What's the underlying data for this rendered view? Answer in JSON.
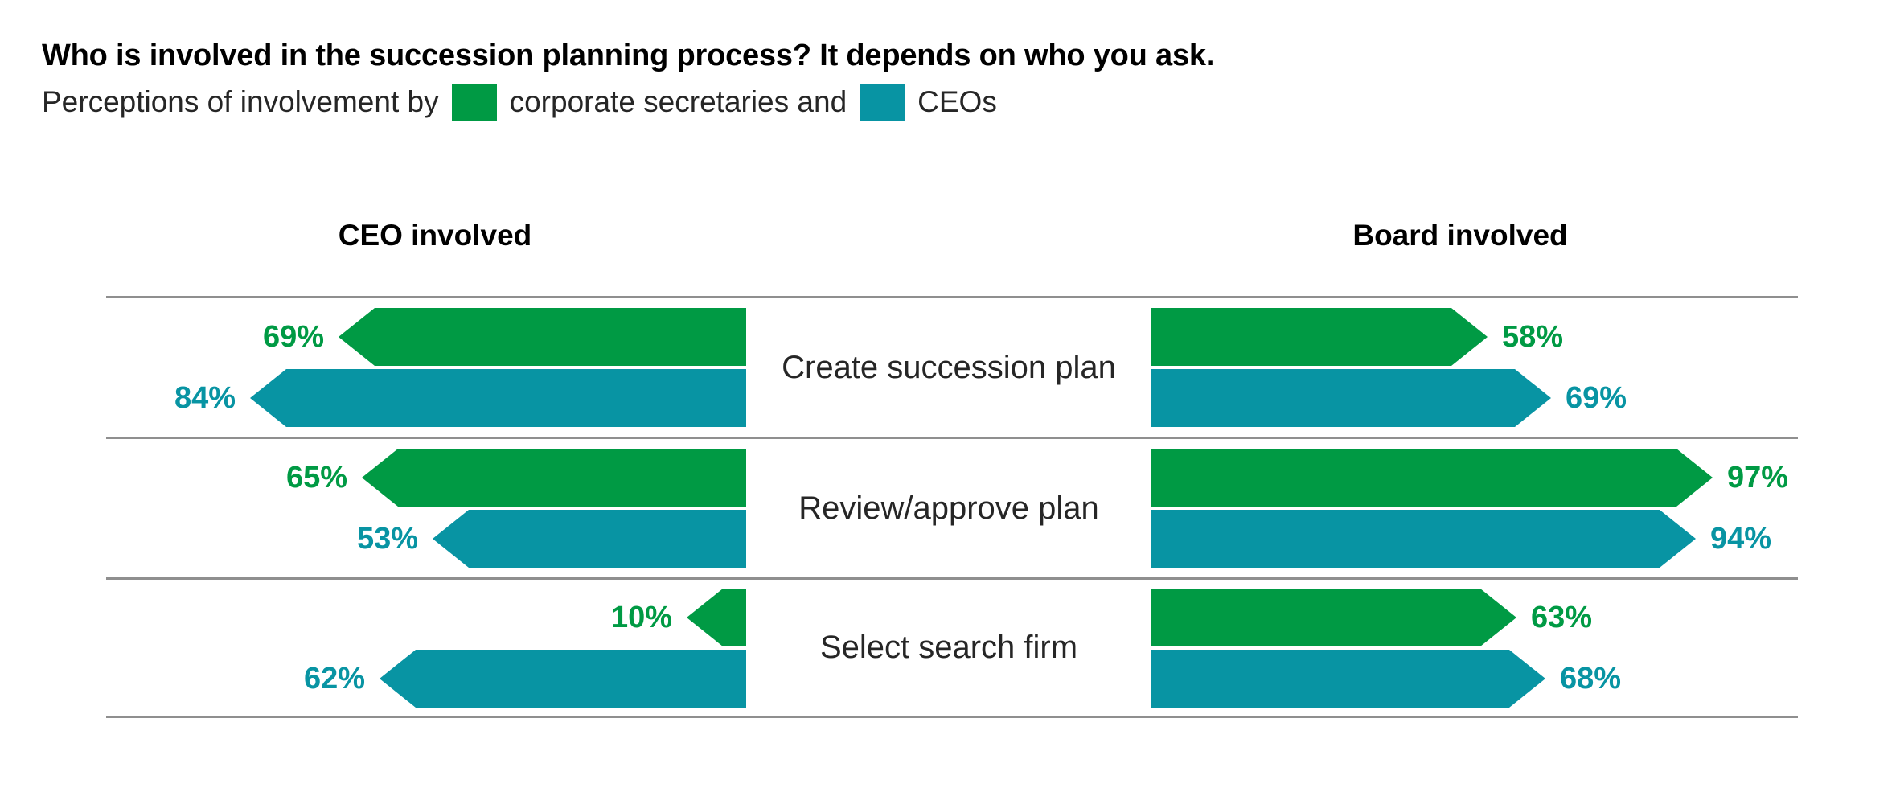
{
  "title": "Who is involved in the succession planning process? It depends on who you ask.",
  "legend": {
    "prefix": "Perceptions of involvement by",
    "series1_label": "corporate secretaries",
    "conjunction": "and",
    "series2_label": "CEOs"
  },
  "colors": {
    "corporate_secretaries": "#009A44",
    "ceos": "#0894A3",
    "rule_line": "#8f8f8f",
    "text": "#262626"
  },
  "chart_data": {
    "type": "bar",
    "variant": "diverging arrow-tipped horizontal bars, two mirrored panels around centered category labels",
    "title": "Who is involved in the succession planning process? It depends on who you ask.",
    "subtitle": "Perceptions of involvement by corporate secretaries and CEOs",
    "panels": [
      "CEO involved",
      "Board involved"
    ],
    "categories": [
      "Create succession plan",
      "Review/approve plan",
      "Select search firm"
    ],
    "series": [
      {
        "name": "corporate secretaries",
        "panel": "CEO involved",
        "color": "#009A44",
        "values": [
          69,
          65,
          10
        ]
      },
      {
        "name": "CEOs",
        "panel": "CEO involved",
        "color": "#0894A3",
        "values": [
          84,
          53,
          62
        ]
      },
      {
        "name": "corporate secretaries",
        "panel": "Board involved",
        "color": "#009A44",
        "values": [
          58,
          97,
          63
        ]
      },
      {
        "name": "CEOs",
        "panel": "Board involved",
        "color": "#0894A3",
        "values": [
          69,
          94,
          68
        ]
      }
    ],
    "unit": "%",
    "xlim": [
      0,
      100
    ],
    "value_labels": "shown at arrow tip, colored per series",
    "grid": "off",
    "legend_position": "inline in subtitle, top-left"
  }
}
